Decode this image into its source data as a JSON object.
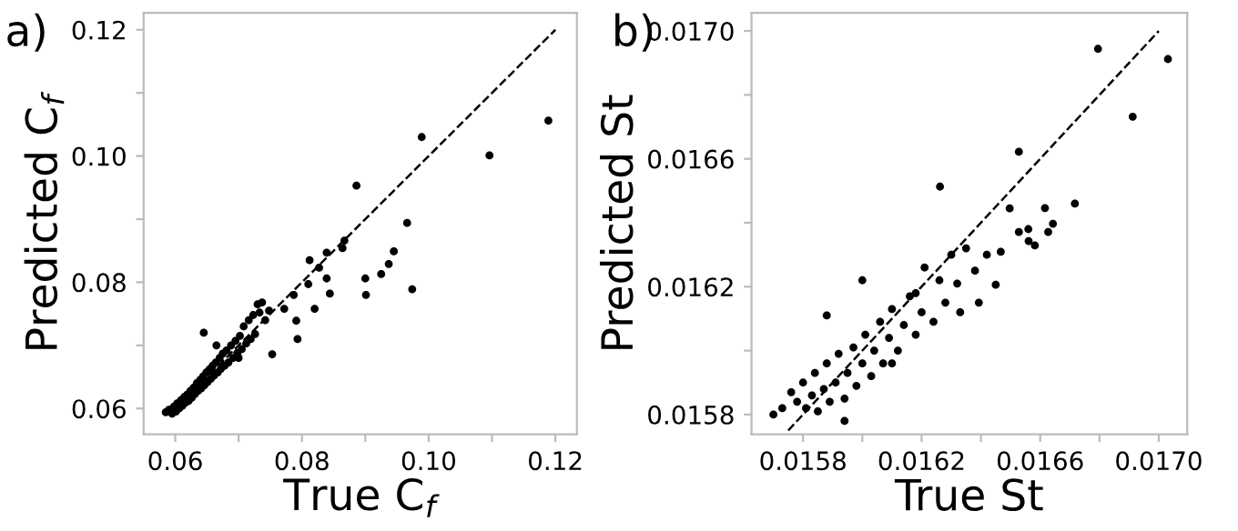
{
  "chart_data": [
    {
      "type": "scatter",
      "xlabel": "True C$_{f}$",
      "ylabel": "Predicted C$_{f}$",
      "annotations": [
        "a)"
      ],
      "marker": "circle",
      "grid": false,
      "xlim": [
        0.055,
        0.1234
      ],
      "ylim": [
        0.0559,
        0.1227
      ],
      "xticks": [
        0.06,
        {
          "value": 0.07,
          "label": null
        },
        0.08,
        {
          "value": 0.09,
          "label": null
        },
        {
          "value": 0.1,
          "label": "0.10"
        },
        {
          "value": 0.11,
          "label": null
        },
        0.12
      ],
      "yticks": [
        0.06,
        {
          "value": 0.07,
          "label": null
        },
        0.08,
        {
          "value": 0.09,
          "label": null
        },
        {
          "value": 0.1,
          "label": "0.10"
        },
        {
          "value": 0.11,
          "label": null
        },
        0.12
      ],
      "series": [
        {
          "color": "#000000",
          "x": [
            0.0585,
            0.059,
            0.0595,
            0.0598,
            0.0601,
            0.0603,
            0.0606,
            0.0609,
            0.0611,
            0.0614,
            0.0616,
            0.0619,
            0.0621,
            0.0624,
            0.0626,
            0.0629,
            0.0631,
            0.0634,
            0.0636,
            0.0639,
            0.0641,
            0.0644,
            0.0646,
            0.0649,
            0.0651,
            0.0654,
            0.0656,
            0.0659,
            0.0661,
            0.0664,
            0.0667,
            0.067,
            0.0672,
            0.0675,
            0.0678,
            0.0681,
            0.0684,
            0.0688,
            0.0691,
            0.0695,
            0.0698,
            0.0702,
            0.0705,
            0.0708,
            0.0712,
            0.0716,
            0.0719,
            0.0723,
            0.0726,
            0.073,
            0.0733,
            0.0737,
            0.0742,
            0.0748,
            0.0645,
            0.07,
            0.0665,
            0.1189,
            0.1096,
            0.0989,
            0.0886,
            0.0966,
            0.0974,
            0.09,
            0.0901,
            0.0925,
            0.0937,
            0.0945,
            0.0867,
            0.0864,
            0.0839,
            0.0812,
            0.0827,
            0.0839,
            0.0844,
            0.082,
            0.0791,
            0.0793,
            0.0753,
            0.081,
            0.0787,
            0.0772
          ],
          "values": [
            0.0594,
            0.0598,
            0.0592,
            0.0603,
            0.0595,
            0.0608,
            0.06,
            0.0613,
            0.0604,
            0.0618,
            0.0609,
            0.0622,
            0.0612,
            0.0628,
            0.0617,
            0.0633,
            0.0623,
            0.064,
            0.0628,
            0.0645,
            0.0632,
            0.0651,
            0.0637,
            0.0657,
            0.0642,
            0.0662,
            0.0647,
            0.0668,
            0.0652,
            0.0673,
            0.0657,
            0.068,
            0.0663,
            0.0687,
            0.0668,
            0.0692,
            0.0673,
            0.07,
            0.068,
            0.0707,
            0.0688,
            0.0715,
            0.0694,
            0.073,
            0.0703,
            0.074,
            0.071,
            0.0748,
            0.0718,
            0.0765,
            0.0752,
            0.0768,
            0.074,
            0.0755,
            0.072,
            0.068,
            0.07,
            0.1056,
            0.1001,
            0.103,
            0.0953,
            0.0894,
            0.0789,
            0.0806,
            0.078,
            0.0813,
            0.0829,
            0.0849,
            0.0866,
            0.0854,
            0.0847,
            0.0835,
            0.0823,
            0.0806,
            0.0782,
            0.0758,
            0.0739,
            0.071,
            0.0686,
            0.0797,
            0.078,
            0.0758
          ]
        },
        {
          "type": "line",
          "color": "#000000",
          "line_style": "dashed",
          "marker": "none",
          "x": [
            0.06,
            0.12
          ],
          "values": [
            0.06,
            0.12
          ]
        }
      ]
    },
    {
      "type": "scatter",
      "xlabel": "True St",
      "ylabel": "Predicted St",
      "annotations": [
        "b)"
      ],
      "marker": "circle",
      "grid": false,
      "xlim": [
        0.015626,
        0.017096
      ],
      "ylim": [
        0.015738,
        0.017057
      ],
      "xticks": [
        0.0158,
        {
          "value": 0.016,
          "label": null
        },
        0.0162,
        {
          "value": 0.0164,
          "label": null
        },
        0.0166,
        {
          "value": 0.0168,
          "label": null
        },
        {
          "value": 0.017,
          "label": "0.0170"
        }
      ],
      "yticks": [
        0.0158,
        {
          "value": 0.016,
          "label": null
        },
        0.0162,
        {
          "value": 0.0164,
          "label": null
        },
        0.0166,
        {
          "value": 0.0168,
          "label": null
        },
        {
          "value": 0.017,
          "label": "0.0170"
        }
      ],
      "series": [
        {
          "color": "#000000",
          "x": [
            0.0157,
            0.01573,
            0.01576,
            0.01578,
            0.0158,
            0.01581,
            0.01583,
            0.01584,
            0.01585,
            0.01587,
            0.01588,
            0.01589,
            0.01591,
            0.01592,
            0.01594,
            0.01595,
            0.01597,
            0.01598,
            0.016,
            0.01601,
            0.01603,
            0.01604,
            0.01606,
            0.01607,
            0.01609,
            0.0161,
            0.01612,
            0.01614,
            0.01616,
            0.01618,
            0.0162,
            0.01621,
            0.01624,
            0.01626,
            0.01628,
            0.0163,
            0.01632,
            0.01635,
            0.01638,
            0.01642,
            0.01588,
            0.016,
            0.01594,
            0.0161,
            0.01618,
            0.01633,
            0.016795,
            0.017031,
            0.016912,
            0.016528,
            0.016262,
            0.016717,
            0.016497,
            0.016616,
            0.016643,
            0.016627,
            0.016528,
            0.016561,
            0.016582,
            0.016467,
            0.01645,
            0.016393,
            0.01656
          ],
          "values": [
            0.0158,
            0.01582,
            0.01587,
            0.01584,
            0.0159,
            0.01582,
            0.01586,
            0.01593,
            0.01581,
            0.01588,
            0.01596,
            0.01584,
            0.0159,
            0.01599,
            0.01585,
            0.01593,
            0.01601,
            0.01589,
            0.01596,
            0.01605,
            0.01592,
            0.016,
            0.01609,
            0.01596,
            0.01604,
            0.01613,
            0.016,
            0.01608,
            0.01617,
            0.01605,
            0.01612,
            0.01626,
            0.01609,
            0.01622,
            0.01615,
            0.0163,
            0.01621,
            0.01632,
            0.01625,
            0.0163,
            0.01611,
            0.01622,
            0.01578,
            0.01596,
            0.01618,
            0.01612,
            0.016944,
            0.016912,
            0.016732,
            0.016622,
            0.016513,
            0.01646,
            0.016445,
            0.016446,
            0.016397,
            0.016371,
            0.016371,
            0.016343,
            0.016329,
            0.016309,
            0.016206,
            0.01615,
            0.01638
          ]
        },
        {
          "type": "line",
          "color": "#000000",
          "line_style": "dashed",
          "marker": "none",
          "x": [
            0.01575,
            0.017
          ],
          "values": [
            0.01575,
            0.017
          ]
        }
      ]
    }
  ]
}
